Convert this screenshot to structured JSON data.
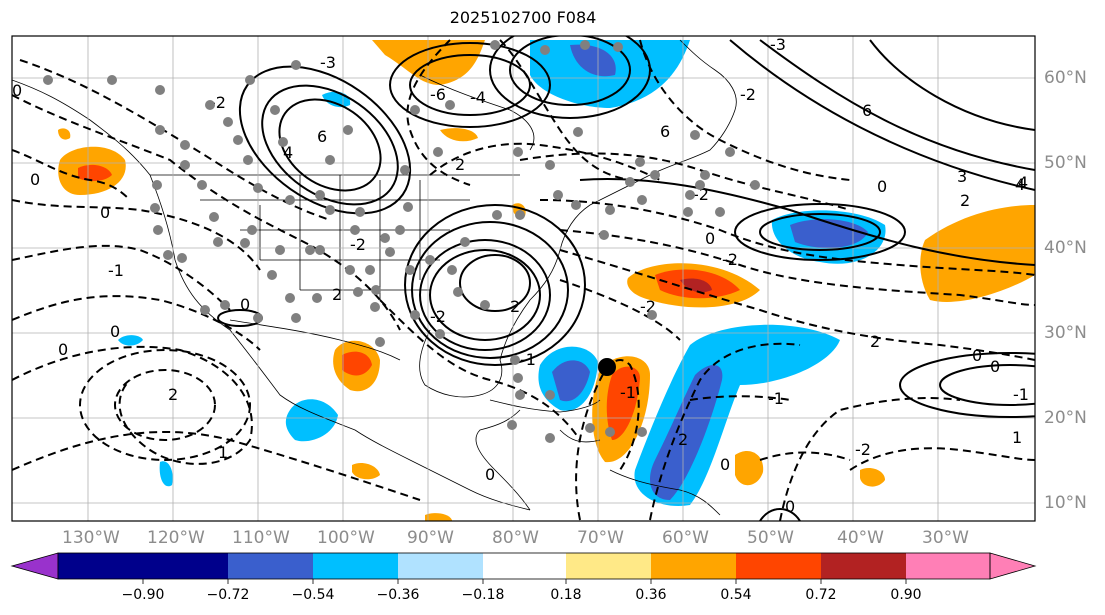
{
  "title": "2025102700 F084",
  "map": {
    "lon_range": [
      -140,
      -18
    ],
    "lat_range": [
      7,
      65
    ],
    "lon_labels": [
      "130°W",
      "120°W",
      "110°W",
      "100°W",
      "90°W",
      "80°W",
      "70°W",
      "60°W",
      "50°W",
      "40°W",
      "30°W"
    ],
    "lat_labels": [
      "60°N",
      "50°N",
      "40°N",
      "30°N",
      "20°N",
      "10°N"
    ],
    "grid": true,
    "contour_labels": [
      "-3",
      "2",
      "6",
      "4",
      "-4",
      "-6",
      "-2",
      "0",
      "6",
      "-3",
      "-2",
      "4",
      "2",
      "6",
      "0",
      "-2",
      "3",
      "4",
      "0",
      "-2",
      "2",
      "-2",
      "2",
      "0",
      "-1",
      "0",
      "1",
      "0",
      "2",
      "2",
      "-2",
      "-1",
      "0",
      "1",
      "-1",
      "-2",
      "2",
      "-2",
      "0",
      "0",
      "-1",
      "-1",
      "0",
      "0",
      "0",
      "0"
    ]
  },
  "colorbar": {
    "tick_labels": [
      "−0.90",
      "−0.72",
      "−0.54",
      "−0.36",
      "−0.18",
      "0.18",
      "0.36",
      "0.54",
      "0.72",
      "0.90"
    ],
    "colors": [
      "#9932cc",
      "#00008b",
      "#3a5fcd",
      "#00bfff",
      "#b0e2ff",
      "#ffffff",
      "#ffe987",
      "#ffa500",
      "#ff4500",
      "#b22222",
      "#ff7fb6"
    ]
  },
  "marker": {
    "label": "storm-center"
  }
}
